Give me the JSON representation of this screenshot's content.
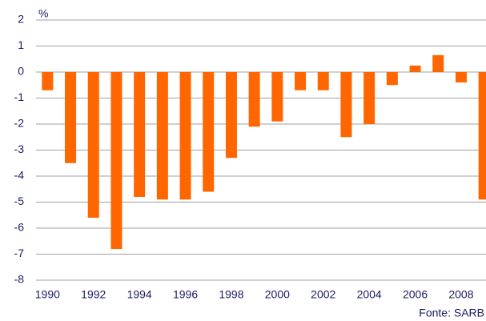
{
  "chart_data": {
    "type": "bar",
    "unit_label": "%",
    "source": "Fonte: SARB",
    "categories": [
      "1990",
      null,
      "1992",
      null,
      "1994",
      null,
      "1996",
      null,
      "1998",
      null,
      "2000",
      null,
      "2002",
      null,
      "2004",
      null,
      "2006",
      null,
      "2008",
      null
    ],
    "values": [
      -0.7,
      -3.5,
      -5.6,
      -6.8,
      -4.8,
      -4.9,
      -4.9,
      -4.6,
      -3.3,
      -2.1,
      -1.9,
      -0.7,
      -0.7,
      -2.5,
      -2.0,
      -0.5,
      0.25,
      0.65,
      -0.4,
      -4.9
    ],
    "color": "#ff6600",
    "ylim": [
      -8,
      2
    ],
    "yticks": [
      -8,
      -7,
      -6,
      -5,
      -4,
      -3,
      -2,
      -1,
      0,
      1,
      2
    ],
    "grid": true
  }
}
